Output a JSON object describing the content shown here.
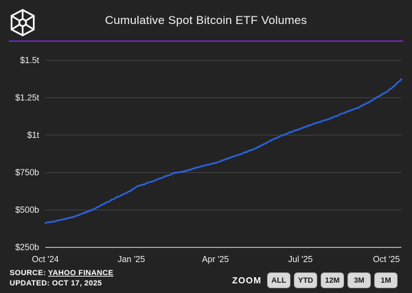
{
  "header": {
    "title": "Cumulative Spot Bitcoin ETF Volumes",
    "logo_icon": "wireframe-cube-logo",
    "accent_color": "#7a22d3"
  },
  "chart_data": {
    "type": "line",
    "title": "Cumulative Spot Bitcoin ETF Volumes",
    "series_name": "Cumulative spot Bitcoin ETF volume (USD)",
    "line_color": "#2b62dd",
    "grid": "horizontal",
    "x_range": [
      "2024-10-01",
      "2025-10-17"
    ],
    "x": [
      "2024-10-01",
      "2024-10-16",
      "2024-11-01",
      "2024-11-15",
      "2024-11-20",
      "2024-12-01",
      "2024-12-15",
      "2025-01-01",
      "2025-01-07",
      "2025-01-16",
      "2025-02-01",
      "2025-02-15",
      "2025-03-01",
      "2025-03-15",
      "2025-04-01",
      "2025-04-15",
      "2025-05-01",
      "2025-05-15",
      "2025-06-01",
      "2025-06-12",
      "2025-07-01",
      "2025-07-15",
      "2025-08-01",
      "2025-08-15",
      "2025-09-01",
      "2025-09-15",
      "2025-09-20",
      "2025-10-01",
      "2025-10-08",
      "2025-10-14",
      "2025-10-17"
    ],
    "values_billions": [
      412,
      430,
      455,
      488,
      500,
      535,
      580,
      630,
      658,
      675,
      712,
      745,
      762,
      788,
      815,
      845,
      880,
      915,
      970,
      1000,
      1045,
      1075,
      1110,
      1145,
      1185,
      1230,
      1250,
      1290,
      1320,
      1355,
      1375
    ],
    "ylim_billions": [
      250,
      1500
    ],
    "y_ticks": [
      {
        "label": "$1.5t",
        "value": 1500
      },
      {
        "label": "$1.25t",
        "value": 1250
      },
      {
        "label": "$1t",
        "value": 1000
      },
      {
        "label": "$750b",
        "value": 750
      },
      {
        "label": "$500b",
        "value": 500
      },
      {
        "label": "$250b",
        "value": 250
      }
    ],
    "x_ticks": [
      {
        "label": "Oct '24",
        "date": "2024-10-01"
      },
      {
        "label": "Jan '25",
        "date": "2025-01-01"
      },
      {
        "label": "Apr '25",
        "date": "2025-04-01"
      },
      {
        "label": "Jul '25",
        "date": "2025-07-01"
      },
      {
        "label": "Oct '25",
        "date": "2025-10-01"
      }
    ]
  },
  "footer": {
    "source_label": "SOURCE:",
    "source_value": "YAHOO FINANCE",
    "updated": "UPDATED: OCT 17, 2025",
    "zoom_label": "ZOOM",
    "zoom_buttons": [
      "ALL",
      "YTD",
      "12M",
      "3M",
      "1M"
    ]
  }
}
